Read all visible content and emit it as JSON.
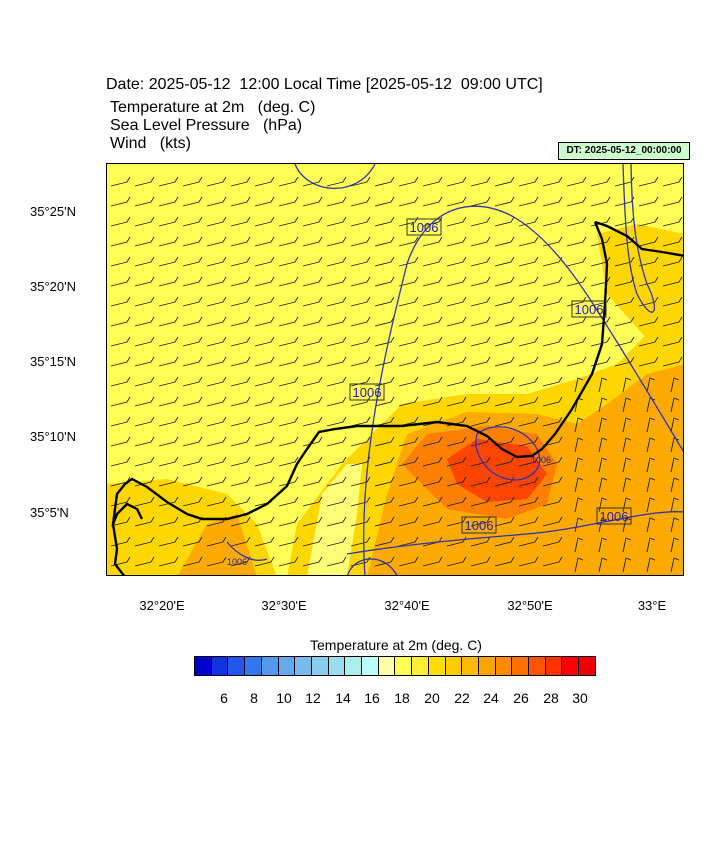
{
  "header": {
    "date_line": "Date: 2025-05-12  12:00 Local Time [2025-05-12  09:00 UTC]",
    "fields": [
      "Temperature at 2m   (deg. C)",
      "Sea Level Pressure   (hPa)",
      "Wind   (kts)"
    ],
    "dt_badge": "DT: 2025-05-12_00:00:00"
  },
  "map": {
    "lat_labels": [
      "35°25'N",
      "35°20'N",
      "35°15'N",
      "35°10'N",
      "35°5'N"
    ],
    "lon_labels": [
      "32°20'E",
      "32°30'E",
      "32°40'E",
      "32°50'E",
      "33°E"
    ],
    "isobar_labels": [
      "1006",
      "1006",
      "1006",
      "1006",
      "1006",
      "1006",
      "1006",
      "1006"
    ],
    "colors": {
      "base_fill": "#ffff55",
      "warm_fill": "#ffd700",
      "hot_fill": "#ffaa00",
      "hotter_fill": "#ff7f00",
      "hottest_fill": "#ff4500",
      "isobar": "#3333aa",
      "coast": "#000000"
    }
  },
  "colorbar": {
    "title": "Temperature at 2m  (deg. C)",
    "colors": [
      "#0000cc",
      "#1133dd",
      "#2255ee",
      "#3377ee",
      "#5599ee",
      "#66aaee",
      "#77bbee",
      "#88ccee",
      "#99ddee",
      "#aaeeee",
      "#bbffff",
      "#ffffaa",
      "#ffff55",
      "#ffee33",
      "#ffdd00",
      "#ffcc00",
      "#ffbb00",
      "#ffa500",
      "#ff8c00",
      "#ff7000",
      "#ff5500",
      "#ff3300",
      "#ff0000",
      "#ee0000"
    ],
    "ticks": [
      "6",
      "8",
      "10",
      "12",
      "14",
      "16",
      "18",
      "20",
      "22",
      "24",
      "26",
      "28",
      "30"
    ]
  }
}
